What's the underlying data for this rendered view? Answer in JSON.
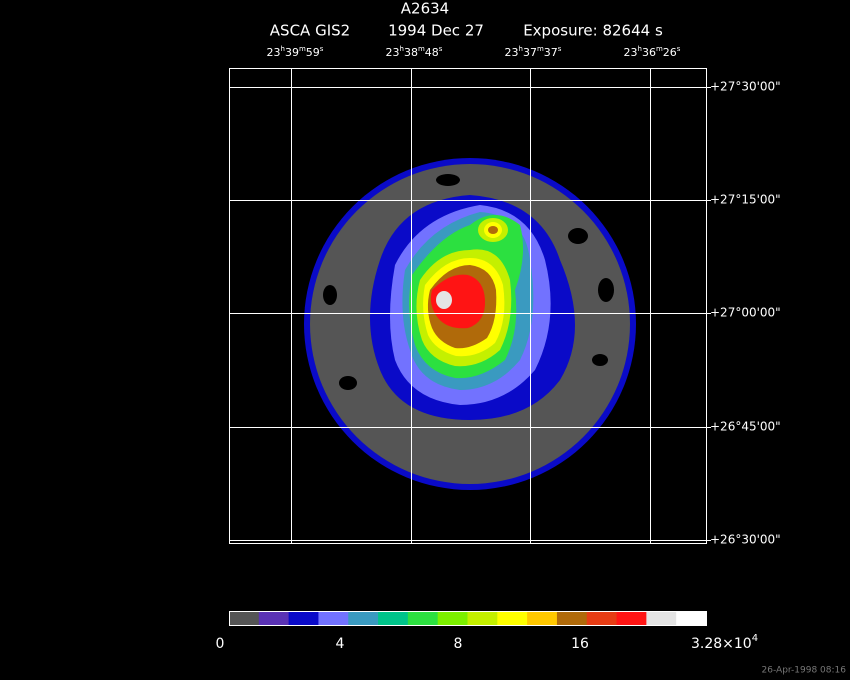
{
  "header": {
    "title": "A2634",
    "instrument": "ASCA GIS2",
    "date": "1994 Dec 27",
    "exposure": "Exposure: 82644 s"
  },
  "ra_units": [
    "h",
    "m",
    "s"
  ],
  "ra_labels": [
    [
      "23",
      "39",
      "59"
    ],
    [
      "23",
      "38",
      "48"
    ],
    [
      "23",
      "37",
      "37"
    ],
    [
      "23",
      "36",
      "26"
    ]
  ],
  "dec_labels": [
    "+27°30'00\"",
    "+27°15'00\"",
    "+27°00'00\"",
    "+26°45'00\"",
    "+26°30'00\""
  ],
  "colorbar": {
    "colors": [
      "#555555",
      "#5a32b4",
      "#0a0ac8",
      "#7272ff",
      "#3a9ac0",
      "#00c48a",
      "#2ce040",
      "#7cf000",
      "#c4f000",
      "#ffff00",
      "#ffc800",
      "#b06a0a",
      "#e63c14",
      "#ff1414",
      "#e4e4e4",
      "#ffffff"
    ],
    "labels": [
      "0",
      "4",
      "8",
      "16"
    ],
    "max_label": {
      "mantissa": "3.28×10",
      "exponent": "4"
    }
  },
  "timestamp": "26-Apr-1998 08:16"
}
